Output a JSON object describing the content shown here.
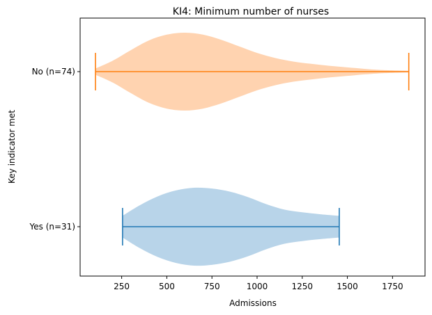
{
  "chart_data": {
    "type": "violin",
    "orientation": "horizontal",
    "title": "KI4: Minimum number of nurses",
    "xlabel": "Admissions",
    "ylabel": "Key indicator met",
    "xlim": [
      20,
      1930
    ],
    "x_ticks": [
      250,
      500,
      750,
      1000,
      1250,
      1500,
      1750
    ],
    "grid": false,
    "series": [
      {
        "name": "Yes (n=31)",
        "min": 255,
        "max": 1455,
        "fill": "#b8d4e9",
        "line": "#1f77b4",
        "profile": [
          [
            255,
            0.28
          ],
          [
            350,
            0.55
          ],
          [
            450,
            0.78
          ],
          [
            550,
            0.93
          ],
          [
            650,
            1.0
          ],
          [
            750,
            0.98
          ],
          [
            850,
            0.9
          ],
          [
            950,
            0.76
          ],
          [
            1050,
            0.58
          ],
          [
            1150,
            0.44
          ],
          [
            1250,
            0.37
          ],
          [
            1350,
            0.32
          ],
          [
            1455,
            0.28
          ]
        ]
      },
      {
        "name": "No (n=74)",
        "min": 105,
        "max": 1840,
        "fill": "#ffd3b0",
        "line": "#ff7f0e",
        "profile": [
          [
            105,
            0.08
          ],
          [
            200,
            0.28
          ],
          [
            300,
            0.55
          ],
          [
            400,
            0.8
          ],
          [
            500,
            0.95
          ],
          [
            600,
            1.0
          ],
          [
            700,
            0.95
          ],
          [
            800,
            0.82
          ],
          [
            900,
            0.65
          ],
          [
            1000,
            0.48
          ],
          [
            1100,
            0.35
          ],
          [
            1200,
            0.26
          ],
          [
            1300,
            0.2
          ],
          [
            1400,
            0.15
          ],
          [
            1500,
            0.11
          ],
          [
            1600,
            0.07
          ],
          [
            1700,
            0.04
          ],
          [
            1840,
            0.02
          ]
        ]
      }
    ]
  }
}
